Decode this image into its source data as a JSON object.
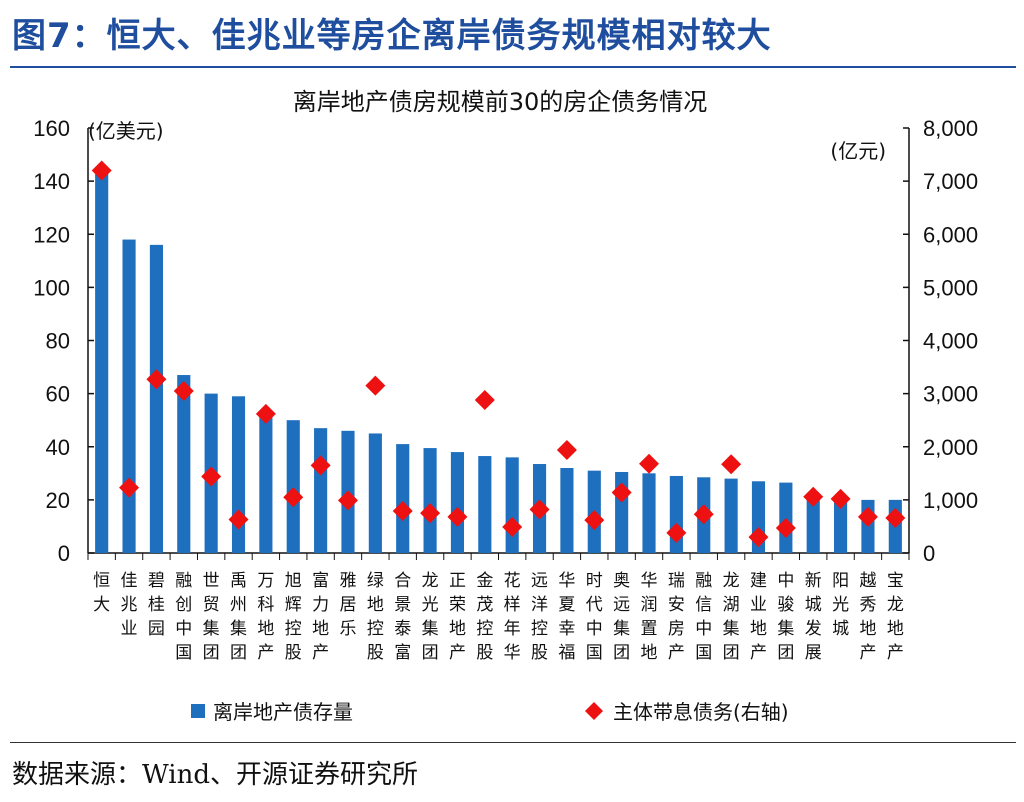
{
  "figure": {
    "title": "图7：恒大、佳兆业等房企离岸债务规模相对较大",
    "source": "数据来源：Wind、开源证券研究所"
  },
  "chart_data": {
    "type": "bar",
    "title": "离岸地产债房规模前30的房企债务情况",
    "y_left_unit": "(亿美元)",
    "y_right_unit": "(亿元)",
    "ylim_left": [
      0,
      160
    ],
    "ylim_right": [
      0,
      8000
    ],
    "y_left_ticks": [
      "0",
      "20",
      "40",
      "60",
      "80",
      "100",
      "120",
      "140",
      "160"
    ],
    "y_right_ticks": [
      "0",
      "1,000",
      "2,000",
      "3,000",
      "4,000",
      "5,000",
      "6,000",
      "7,000",
      "8,000"
    ],
    "grid": false,
    "legend_position": "bottom",
    "categories": [
      "恒大",
      "佳兆业",
      "碧桂园",
      "融创中国",
      "世贸集团",
      "禹州集团",
      "万科地产",
      "旭辉控股",
      "富力地产",
      "雅居乐",
      "绿地控股",
      "合景泰富",
      "龙光集团",
      "正荣地产",
      "金茂控股",
      "花样年华",
      "远洋控股",
      "华夏幸福",
      "时代中国",
      "奥远集团",
      "华润置地",
      "瑞安房产",
      "融信中国",
      "龙湖集团",
      "建业地产",
      "中骏集团",
      "新城发展",
      "阳光城",
      "越秀地产",
      "宝龙地产"
    ],
    "series": [
      {
        "name": "离岸地产债存量",
        "type": "bar",
        "axis": "left",
        "color": "#1f6fbf",
        "values": [
          143,
          118,
          116,
          67,
          60,
          59,
          52,
          50,
          47,
          46,
          45,
          41,
          39.5,
          38,
          36.5,
          36,
          33.5,
          32,
          31,
          30.5,
          30,
          29,
          28.5,
          28,
          27,
          26.5,
          21,
          20.5,
          20,
          20
        ]
      },
      {
        "name": "主体带息债务(右轴)",
        "type": "scatter",
        "axis": "right",
        "marker": "diamond",
        "color": "#ee1111",
        "values": [
          7200,
          1230,
          3270,
          3050,
          1440,
          630,
          2620,
          1050,
          1650,
          990,
          3150,
          790,
          750,
          680,
          2880,
          490,
          820,
          1940,
          620,
          1140,
          1680,
          380,
          730,
          1670,
          300,
          470,
          1060,
          1020,
          680,
          660
        ]
      }
    ]
  }
}
